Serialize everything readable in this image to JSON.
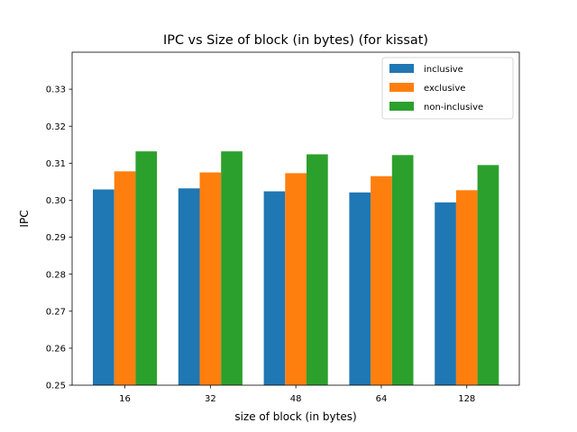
{
  "chart_data": {
    "type": "bar",
    "title": "IPC vs Size of block (in bytes) (for kissat)",
    "xlabel": "size of block (in bytes)",
    "ylabel": "IPC",
    "categories": [
      "16",
      "32",
      "48",
      "64",
      "128"
    ],
    "series": [
      {
        "name": "inclusive",
        "color": "#1f77b4",
        "values": [
          0.3029,
          0.3032,
          0.3024,
          0.3021,
          0.2994
        ]
      },
      {
        "name": "exclusive",
        "color": "#ff7f0e",
        "values": [
          0.3078,
          0.3075,
          0.3073,
          0.3065,
          0.3027
        ]
      },
      {
        "name": "non-inclusive",
        "color": "#2ca02c",
        "values": [
          0.3132,
          0.3132,
          0.3124,
          0.3122,
          0.3095
        ]
      }
    ],
    "ylim": [
      0.25,
      0.34
    ],
    "yticks": [
      "0.25",
      "0.26",
      "0.27",
      "0.28",
      "0.29",
      "0.30",
      "0.31",
      "0.32",
      "0.33"
    ],
    "grid": false,
    "legend_position": "top-right"
  }
}
